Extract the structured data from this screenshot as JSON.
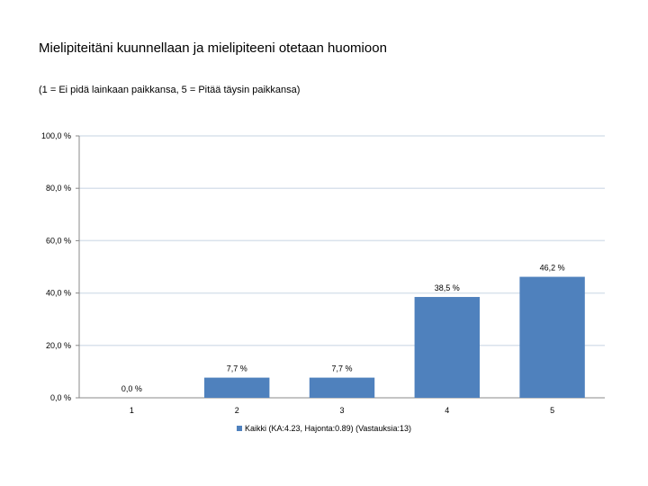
{
  "chart_data": {
    "type": "bar",
    "title": "Mielipiteitäni kuunnellaan ja mielipiteeni otetaan huomioon",
    "subtitle": "(1 = Ei pidä lainkaan paikkansa, 5 = Pitää täysin paikkansa)",
    "categories": [
      "1",
      "2",
      "3",
      "4",
      "5"
    ],
    "series": [
      {
        "name": "Kaikki (KA:4.23, Hajonta:0.89) (Vastauksia:13)",
        "values": [
          0.0,
          7.7,
          7.7,
          38.5,
          46.2
        ],
        "value_labels": [
          "0,0 %",
          "7,7 %",
          "7,7 %",
          "38,5 %",
          "46,2 %"
        ],
        "color": "#4f81bd"
      }
    ],
    "ylim": [
      0,
      100
    ],
    "yticks": [
      0,
      20,
      40,
      60,
      80,
      100
    ],
    "ytick_labels": [
      "0,0 %",
      "20,0 %",
      "40,0 %",
      "60,0 %",
      "80,0 %",
      "100,0 %"
    ],
    "grid": true,
    "gridline_color": "#d9e2ec",
    "legend_position": "bottom"
  }
}
